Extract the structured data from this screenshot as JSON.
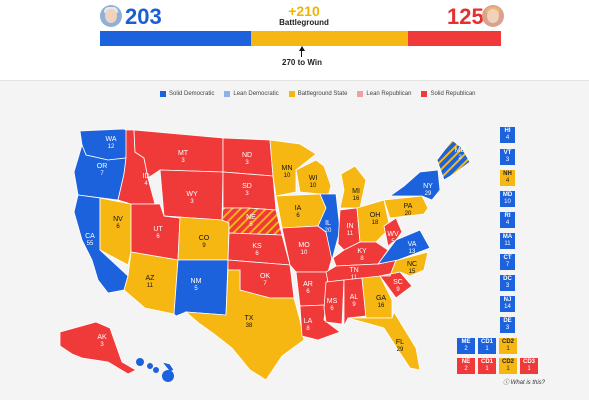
{
  "header": {
    "dem_total": "203",
    "rep_total": "125",
    "battleground_total": "+210",
    "battleground_label": "Battleground",
    "win_label": "270 to Win"
  },
  "colors": {
    "solid_dem": "#1c62dd",
    "lean_dem": "#8ab4e8",
    "battleground": "#f7b713",
    "lean_rep": "#f0a0a0",
    "solid_rep": "#f03a3a"
  },
  "legend": [
    {
      "label": "Solid Democratic",
      "color": "#1c62dd"
    },
    {
      "label": "Lean Democratic",
      "color": "#8ab4e8"
    },
    {
      "label": "Battleground State",
      "color": "#f7b713"
    },
    {
      "label": "Lean Republican",
      "color": "#f0a0a0"
    },
    {
      "label": "Solid Republican",
      "color": "#f03a3a"
    }
  ],
  "states": [
    {
      "abbr": "WA",
      "ev": "12",
      "rating": "solid_dem"
    },
    {
      "abbr": "OR",
      "ev": "7",
      "rating": "solid_dem"
    },
    {
      "abbr": "CA",
      "ev": "55",
      "rating": "solid_dem"
    },
    {
      "abbr": "NV",
      "ev": "6",
      "rating": "battleground"
    },
    {
      "abbr": "ID",
      "ev": "4",
      "rating": "solid_rep"
    },
    {
      "abbr": "MT",
      "ev": "3",
      "rating": "solid_rep"
    },
    {
      "abbr": "WY",
      "ev": "3",
      "rating": "solid_rep"
    },
    {
      "abbr": "UT",
      "ev": "6",
      "rating": "solid_rep"
    },
    {
      "abbr": "AZ",
      "ev": "11",
      "rating": "battleground"
    },
    {
      "abbr": "CO",
      "ev": "9",
      "rating": "battleground"
    },
    {
      "abbr": "NM",
      "ev": "5",
      "rating": "solid_dem"
    },
    {
      "abbr": "ND",
      "ev": "3",
      "rating": "solid_rep"
    },
    {
      "abbr": "SD",
      "ev": "3",
      "rating": "solid_rep"
    },
    {
      "abbr": "NE",
      "ev": "5",
      "rating": "solid_rep"
    },
    {
      "abbr": "KS",
      "ev": "6",
      "rating": "solid_rep"
    },
    {
      "abbr": "OK",
      "ev": "7",
      "rating": "solid_rep"
    },
    {
      "abbr": "TX",
      "ev": "38",
      "rating": "battleground"
    },
    {
      "abbr": "MN",
      "ev": "10",
      "rating": "battleground"
    },
    {
      "abbr": "IA",
      "ev": "6",
      "rating": "battleground"
    },
    {
      "abbr": "MO",
      "ev": "10",
      "rating": "solid_rep"
    },
    {
      "abbr": "AR",
      "ev": "6",
      "rating": "solid_rep"
    },
    {
      "abbr": "LA",
      "ev": "8",
      "rating": "solid_rep"
    },
    {
      "abbr": "WI",
      "ev": "10",
      "rating": "battleground"
    },
    {
      "abbr": "IL",
      "ev": "20",
      "rating": "solid_dem"
    },
    {
      "abbr": "MI",
      "ev": "16",
      "rating": "battleground"
    },
    {
      "abbr": "IN",
      "ev": "11",
      "rating": "solid_rep"
    },
    {
      "abbr": "OH",
      "ev": "18",
      "rating": "battleground"
    },
    {
      "abbr": "KY",
      "ev": "8",
      "rating": "solid_rep"
    },
    {
      "abbr": "TN",
      "ev": "11",
      "rating": "solid_rep"
    },
    {
      "abbr": "MS",
      "ev": "6",
      "rating": "solid_rep"
    },
    {
      "abbr": "AL",
      "ev": "9",
      "rating": "solid_rep"
    },
    {
      "abbr": "GA",
      "ev": "16",
      "rating": "battleground"
    },
    {
      "abbr": "FL",
      "ev": "29",
      "rating": "battleground"
    },
    {
      "abbr": "SC",
      "ev": "9",
      "rating": "solid_rep"
    },
    {
      "abbr": "NC",
      "ev": "15",
      "rating": "battleground"
    },
    {
      "abbr": "VA",
      "ev": "13",
      "rating": "solid_dem"
    },
    {
      "abbr": "WV",
      "ev": "5",
      "rating": "solid_rep"
    },
    {
      "abbr": "PA",
      "ev": "20",
      "rating": "battleground"
    },
    {
      "abbr": "NY",
      "ev": "29",
      "rating": "solid_dem"
    },
    {
      "abbr": "ME",
      "ev": "2",
      "rating": "solid_dem"
    },
    {
      "abbr": "AK",
      "ev": "3",
      "rating": "solid_rep"
    },
    {
      "abbr": "HI",
      "ev": "4",
      "rating": "solid_dem"
    },
    {
      "abbr": "VT",
      "ev": "3",
      "rating": "solid_dem"
    },
    {
      "abbr": "NH",
      "ev": "4",
      "rating": "battleground"
    },
    {
      "abbr": "MD",
      "ev": "10",
      "rating": "solid_dem"
    },
    {
      "abbr": "RI",
      "ev": "4",
      "rating": "solid_dem"
    },
    {
      "abbr": "MA",
      "ev": "11",
      "rating": "solid_dem"
    },
    {
      "abbr": "CT",
      "ev": "7",
      "rating": "solid_dem"
    },
    {
      "abbr": "DC",
      "ev": "3",
      "rating": "solid_dem"
    },
    {
      "abbr": "NJ",
      "ev": "14",
      "rating": "solid_dem"
    },
    {
      "abbr": "DE",
      "ev": "3",
      "rating": "solid_dem"
    }
  ],
  "districts": [
    {
      "abbr": "ME",
      "ev": "2",
      "rating": "solid_dem"
    },
    {
      "abbr": "CD1",
      "ev": "1",
      "rating": "solid_dem"
    },
    {
      "abbr": "CD2",
      "ev": "1",
      "rating": "battleground"
    },
    {
      "abbr": "NE",
      "ev": "2",
      "rating": "solid_rep"
    },
    {
      "abbr": "CD1",
      "ev": "1",
      "rating": "solid_rep"
    },
    {
      "abbr": "CD2",
      "ev": "1",
      "rating": "battleground"
    },
    {
      "abbr": "CD3",
      "ev": "1",
      "rating": "solid_rep"
    }
  ],
  "footer": {
    "what_is_this": "What is this?"
  }
}
